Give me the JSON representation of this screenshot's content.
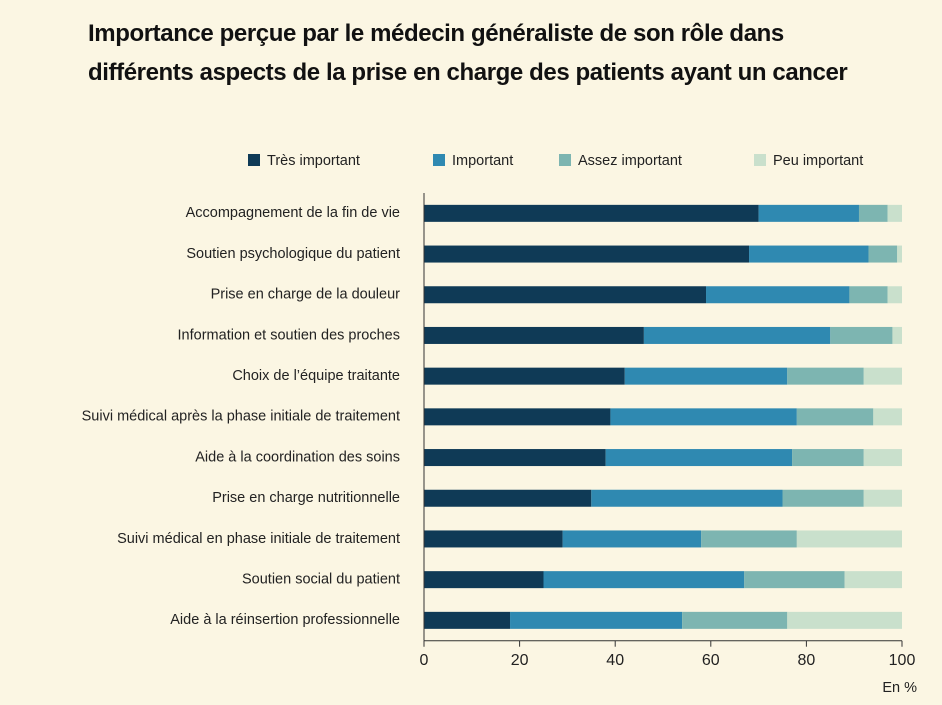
{
  "chart_data": {
    "type": "bar",
    "orientation": "horizontal",
    "stacked": true,
    "title": "Importance perçue par le médecin généraliste de son rôle dans différents aspects de la prise en charge des patients ayant un cancer",
    "x_label": "En %",
    "categories": [
      "Accompagnement de la fin de vie",
      "Soutien psychologique du patient",
      "Prise en charge de la douleur",
      "Information et soutien des proches",
      "Choix de l’équipe traitante",
      "Suivi médical après la phase initiale de traitement",
      "Aide à la coordination des soins",
      "Prise en charge nutritionnelle",
      "Suivi médical en phase initiale de traitement",
      "Soutien social du patient",
      "Aide à la réinsertion professionnelle"
    ],
    "series": [
      {
        "name": "Très important",
        "color": "#0f3a56",
        "values": [
          70,
          68,
          59,
          46,
          42,
          39,
          38,
          35,
          29,
          25,
          18
        ]
      },
      {
        "name": "Important",
        "color": "#2f89b1",
        "values": [
          21,
          25,
          30,
          39,
          34,
          39,
          39,
          40,
          29,
          42,
          36
        ]
      },
      {
        "name": "Assez important",
        "color": "#7db5b1",
        "values": [
          6,
          6,
          8,
          13,
          16,
          16,
          15,
          17,
          20,
          21,
          22
        ]
      },
      {
        "name": "Peu important",
        "color": "#c9e0cc",
        "values": [
          3,
          1,
          3,
          2,
          8,
          6,
          8,
          8,
          22,
          12,
          24
        ]
      }
    ],
    "xlim": [
      0,
      100
    ],
    "xticks": [
      0,
      20,
      40,
      60,
      80,
      100
    ]
  }
}
